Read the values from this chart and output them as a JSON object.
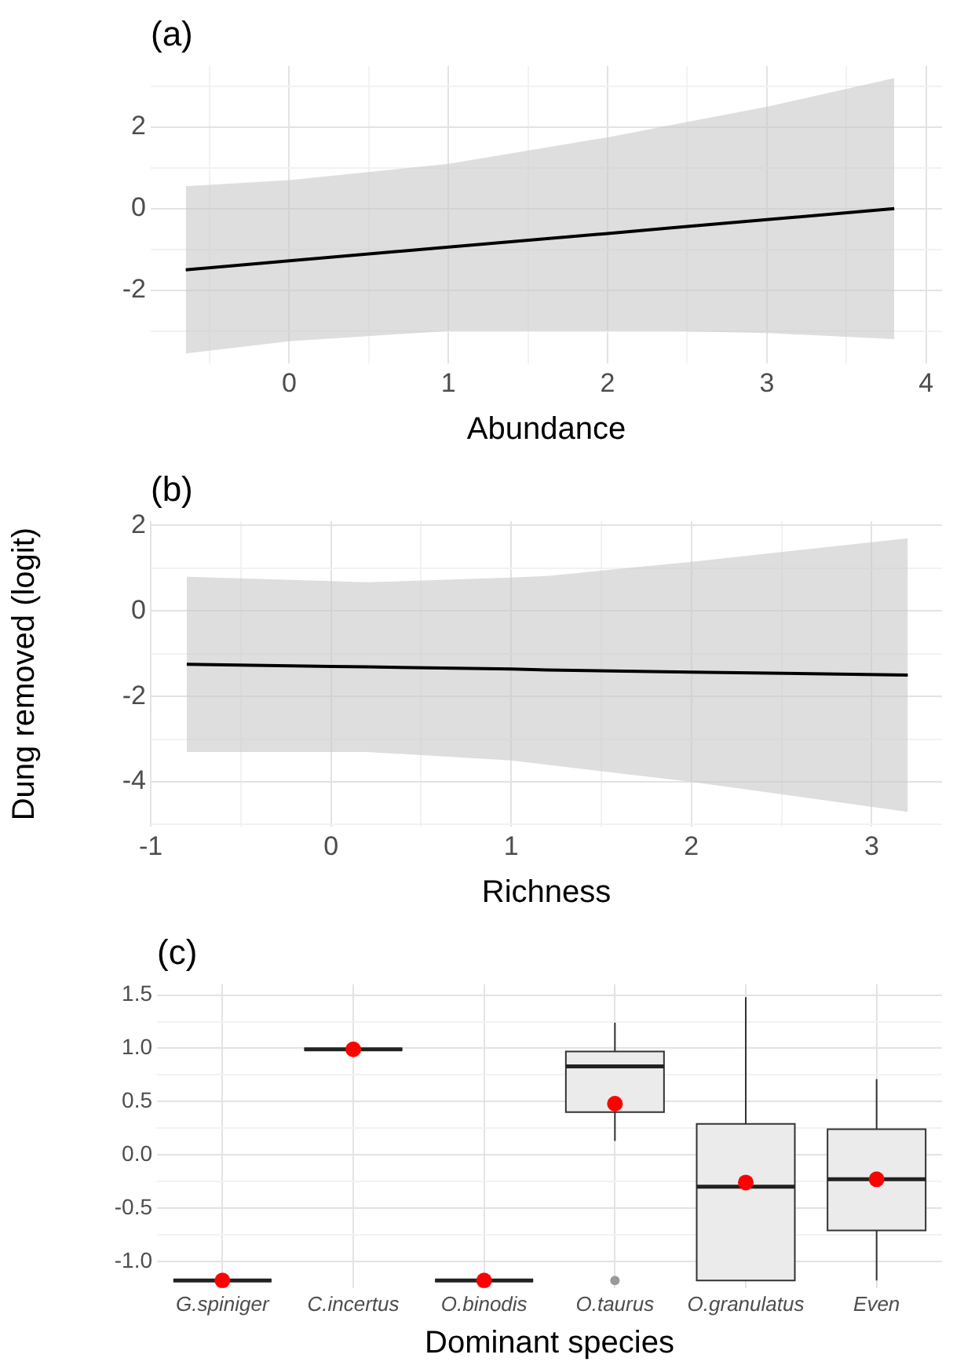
{
  "chart_data": [
    {
      "type": "line",
      "title": "(a)",
      "xlabel": "Abundance",
      "xlim": [
        -0.87,
        4.1
      ],
      "ylim": [
        -3.8,
        3.5
      ],
      "xticks": [
        {
          "value": -0.5,
          "label": null
        },
        0,
        {
          "value": 0.5,
          "label": null
        },
        1,
        {
          "value": 1.5,
          "label": null
        },
        2,
        {
          "value": 2.5,
          "label": null
        },
        3,
        {
          "value": 3.5,
          "label": null
        },
        4
      ],
      "yticks": [
        {
          "value": -3,
          "label": null
        },
        -2,
        {
          "value": -1,
          "label": null
        },
        0,
        {
          "value": 1,
          "label": null
        },
        2,
        {
          "value": 3,
          "label": null
        }
      ],
      "grid": true,
      "series": [
        {
          "color": "#000000",
          "x": [
            -0.65,
            0,
            1,
            2,
            2.4,
            3,
            3.8
          ],
          "values": [
            -1.5,
            -1.28,
            -0.94,
            -0.61,
            -0.47,
            -0.27,
            0
          ],
          "upper": [
            0.55,
            0.7,
            1.1,
            1.75,
            2.05,
            2.5,
            3.2
          ],
          "lower": [
            -3.55,
            -3.25,
            -3.0,
            -3.0,
            -3.0,
            -3.05,
            -3.2
          ]
        }
      ]
    },
    {
      "type": "line",
      "title": "(b)",
      "xlabel": "Richness",
      "ylabel": "Dung removed (logit)",
      "xlim": [
        -1,
        3.39
      ],
      "ylim": [
        -5.05,
        2.1
      ],
      "xticks": [
        -1,
        {
          "value": -0.5,
          "label": null
        },
        0,
        {
          "value": 0.5,
          "label": null
        },
        1,
        {
          "value": 1.5,
          "label": null
        },
        2,
        {
          "value": 2.5,
          "label": null
        },
        3
      ],
      "yticks": [
        {
          "value": -5,
          "label": null
        },
        -4,
        {
          "value": -3,
          "label": null
        },
        -2,
        {
          "value": -1,
          "label": null
        },
        0,
        {
          "value": 1,
          "label": null
        },
        2
      ],
      "grid": true,
      "series": [
        {
          "color": "#000000",
          "x": [
            -0.8,
            0,
            0.2,
            1,
            1.2,
            2,
            3.2
          ],
          "values": [
            -1.25,
            -1.3,
            -1.31,
            -1.36,
            -1.38,
            -1.43,
            -1.5
          ],
          "upper": [
            0.8,
            0.7,
            0.67,
            0.78,
            0.82,
            1.15,
            1.7
          ],
          "lower": [
            -3.3,
            -3.3,
            -3.3,
            -3.5,
            -3.6,
            -4.0,
            -4.7
          ]
        }
      ]
    },
    {
      "type": "box",
      "title": "(c)",
      "xlabel": "Dominant species",
      "ylim": [
        -1.25,
        1.6
      ],
      "yticks": [
        {
          "value": -1,
          "label": "-1.0"
        },
        {
          "value": -0.75,
          "label": null
        },
        -0.5,
        {
          "value": -0.25,
          "label": null
        },
        {
          "value": 0,
          "label": "0.0"
        },
        {
          "value": 0.25,
          "label": null
        },
        0.5,
        {
          "value": 0.75,
          "label": null
        },
        {
          "value": 1,
          "label": "1.0"
        },
        {
          "value": 1.25,
          "label": null
        },
        1.5
      ],
      "grid": true,
      "categories": [
        "G.spiniger",
        "C.incertus",
        "O.binodis",
        "O.taurus",
        "O.granulatus",
        "Even"
      ],
      "boxes": [
        {
          "low": -1.18,
          "q1": -1.18,
          "median": -1.18,
          "q3": -1.18,
          "high": -1.18,
          "mean": -1.18
        },
        {
          "low": 0.99,
          "q1": 0.99,
          "median": 0.99,
          "q3": 0.99,
          "high": 0.99,
          "mean": 0.99
        },
        {
          "low": -1.18,
          "q1": -1.18,
          "median": -1.18,
          "q3": -1.18,
          "high": -1.18,
          "mean": -1.18
        },
        {
          "low": 0.13,
          "q1": 0.4,
          "median": 0.83,
          "q3": 0.97,
          "high": 1.24,
          "mean": 0.48,
          "outliers": [
            -1.18
          ]
        },
        {
          "low": -1.18,
          "q1": -1.18,
          "median": -0.3,
          "q3": 0.29,
          "high": 1.48,
          "mean": -0.26
        },
        {
          "low": -1.18,
          "q1": -0.71,
          "median": -0.23,
          "q3": 0.24,
          "high": 0.71,
          "mean": -0.23
        }
      ]
    }
  ]
}
